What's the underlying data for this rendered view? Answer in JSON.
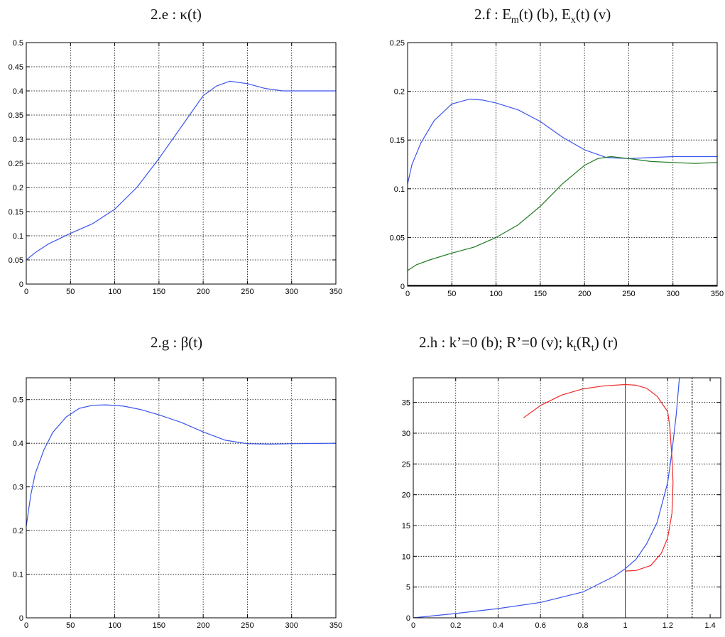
{
  "panels": [
    {
      "title": "2.e : κ(t)"
    },
    {
      "title_main": "2.f : E",
      "title_sub1": "m",
      "title_mid": "(t) (b), E",
      "title_sub2": "x",
      "title_end": "(t) (v)"
    },
    {
      "title": "2.g : β(t)"
    },
    {
      "title_main": "2.h : k’=0 (b); R’=0 (v); k",
      "title_sub1": "t",
      "title_mid": "(R",
      "title_sub2": "t",
      "title_end": ") (r)"
    }
  ],
  "colors": {
    "blue": "#3b55ee",
    "green": "#1f7a1f",
    "red": "#ee2a2a",
    "black": "#000000"
  },
  "chart_data": [
    {
      "type": "line",
      "title": "2.e : κ(t)",
      "xlabel": "",
      "ylabel": "",
      "xlim": [
        0,
        350
      ],
      "ylim": [
        0,
        0.5
      ],
      "xticks": [
        0,
        50,
        100,
        150,
        200,
        250,
        300,
        350
      ],
      "xtick_labels": [
        "0",
        "50",
        "100",
        "150",
        "200",
        "250",
        "300",
        "350"
      ],
      "yticks": [
        0,
        0.05,
        0.1,
        0.15,
        0.2,
        0.25,
        0.3,
        0.35,
        0.4,
        0.45,
        0.5
      ],
      "ytick_labels": [
        "0",
        "0.05",
        "0.1",
        "0.15",
        "0.2",
        "0.25",
        "0.3",
        "0.35",
        "0.4",
        "0.45",
        "0.5"
      ],
      "grid": true,
      "series": [
        {
          "color": "blue",
          "x": [
            0,
            10,
            25,
            50,
            75,
            100,
            125,
            150,
            175,
            200,
            215,
            230,
            250,
            270,
            290,
            310,
            350
          ],
          "y": [
            0.05,
            0.065,
            0.083,
            0.105,
            0.125,
            0.155,
            0.2,
            0.26,
            0.325,
            0.39,
            0.41,
            0.42,
            0.415,
            0.405,
            0.4,
            0.4,
            0.4
          ]
        }
      ]
    },
    {
      "type": "line",
      "title": "2.f : Em(t) (b), Ex(t) (v)",
      "xlabel": "",
      "ylabel": "",
      "xlim": [
        0,
        350
      ],
      "ylim": [
        0,
        0.25
      ],
      "xticks": [
        0,
        50,
        100,
        150,
        200,
        250,
        300,
        350
      ],
      "xtick_labels": [
        "0",
        "50",
        "100",
        "150",
        "200",
        "250",
        "300",
        "350"
      ],
      "yticks": [
        0,
        0.05,
        0.1,
        0.15,
        0.2,
        0.25
      ],
      "ytick_labels": [
        "0",
        "0.05",
        "0.1",
        "0.15",
        "0.2",
        "0.25"
      ],
      "grid": true,
      "series": [
        {
          "color": "blue",
          "x": [
            0,
            5,
            15,
            30,
            50,
            70,
            85,
            100,
            125,
            150,
            175,
            200,
            225,
            250,
            275,
            300,
            350
          ],
          "y": [
            0.105,
            0.125,
            0.147,
            0.17,
            0.187,
            0.192,
            0.191,
            0.188,
            0.181,
            0.169,
            0.153,
            0.14,
            0.132,
            0.131,
            0.132,
            0.133,
            0.133
          ]
        },
        {
          "color": "green",
          "x": [
            0,
            10,
            25,
            50,
            75,
            100,
            125,
            150,
            175,
            200,
            215,
            230,
            250,
            275,
            300,
            325,
            350
          ],
          "y": [
            0.016,
            0.022,
            0.027,
            0.034,
            0.04,
            0.05,
            0.063,
            0.082,
            0.105,
            0.124,
            0.131,
            0.133,
            0.131,
            0.128,
            0.127,
            0.126,
            0.127
          ]
        },
        {
          "color": "black",
          "x": [
            0,
            350
          ],
          "y": [
            0.001,
            0.001
          ]
        }
      ]
    },
    {
      "type": "line",
      "title": "2.g : β(t)",
      "xlabel": "",
      "ylabel": "",
      "xlim": [
        0,
        350
      ],
      "ylim": [
        0,
        0.55
      ],
      "xticks": [
        0,
        50,
        100,
        150,
        200,
        250,
        300,
        350
      ],
      "xtick_labels": [
        "0",
        "50",
        "100",
        "150",
        "200",
        "250",
        "300",
        "350"
      ],
      "yticks": [
        0,
        0.1,
        0.2,
        0.3,
        0.4,
        0.5
      ],
      "ytick_labels": [
        "0",
        "0.1",
        "0.2",
        "0.3",
        "0.4",
        "0.5"
      ],
      "grid": true,
      "series": [
        {
          "color": "blue",
          "x": [
            0,
            5,
            10,
            20,
            30,
            45,
            60,
            75,
            90,
            110,
            130,
            150,
            175,
            200,
            225,
            250,
            275,
            300,
            350
          ],
          "y": [
            0.21,
            0.28,
            0.33,
            0.385,
            0.425,
            0.46,
            0.48,
            0.487,
            0.488,
            0.485,
            0.477,
            0.465,
            0.448,
            0.426,
            0.407,
            0.399,
            0.398,
            0.399,
            0.4
          ]
        }
      ]
    },
    {
      "type": "line",
      "title": "2.h : k’=0 (b); R’=0 (v); kt(Rt) (r)",
      "xlabel": "",
      "ylabel": "",
      "xlim": [
        0,
        1.45
      ],
      "ylim": [
        0,
        39
      ],
      "xticks": [
        0,
        0.2,
        0.4,
        0.6,
        0.8,
        1,
        1.2,
        1.4
      ],
      "xtick_labels": [
        "0",
        "0.2",
        "0.4",
        "0.6",
        "0.8",
        "1",
        "1.2",
        "1.4"
      ],
      "yticks": [
        0,
        5,
        10,
        15,
        20,
        25,
        30,
        35
      ],
      "ytick_labels": [
        "0",
        "5",
        "10",
        "15",
        "20",
        "25",
        "30",
        "35"
      ],
      "grid": true,
      "series": [
        {
          "color": "blue",
          "x": [
            0,
            0.2,
            0.4,
            0.6,
            0.8,
            0.95,
            1,
            1.05,
            1.1,
            1.15,
            1.2,
            1.22,
            1.24,
            1.255
          ],
          "y": [
            0,
            0.7,
            1.5,
            2.5,
            4.2,
            6.8,
            8,
            9.5,
            12,
            15.5,
            22,
            27,
            33,
            39
          ]
        },
        {
          "color": "green",
          "x": [
            1,
            1
          ],
          "y": [
            0,
            39
          ]
        },
        {
          "color": "black",
          "dashed": true,
          "x": [
            1.315,
            1.315
          ],
          "y": [
            0,
            39
          ]
        },
        {
          "color": "red",
          "x": [
            0.52,
            0.6,
            0.7,
            0.8,
            0.9,
            1,
            1.05,
            1.1,
            1.15,
            1.2,
            1.21,
            1.22,
            1.225,
            1.22,
            1.2,
            1.17,
            1.12,
            1.05,
            1
          ],
          "y": [
            32.5,
            34.5,
            36.2,
            37.2,
            37.7,
            37.9,
            37.8,
            37.3,
            36,
            33.5,
            31,
            26,
            22,
            17,
            13,
            10.5,
            8.5,
            7.7,
            7.6
          ]
        }
      ]
    }
  ]
}
